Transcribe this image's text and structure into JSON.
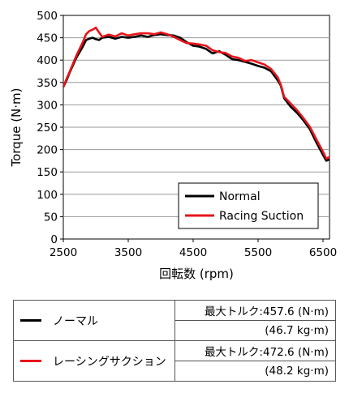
{
  "chart_data": {
    "type": "line",
    "xlabel": "回転数 (rpm)",
    "ylabel": "Torque (N·m)",
    "xlim": [
      2500,
      6600
    ],
    "ylim": [
      0,
      500
    ],
    "xticks": [
      "2500",
      "3500",
      "4500",
      "5500",
      "6500"
    ],
    "xtick_values": [
      2500,
      3500,
      4500,
      5500,
      6500
    ],
    "yticks": [
      "0",
      "50",
      "100",
      "150",
      "200",
      "250",
      "300",
      "350",
      "400",
      "450",
      "500"
    ],
    "ytick_values": [
      0,
      50,
      100,
      150,
      200,
      250,
      300,
      350,
      400,
      450,
      500
    ],
    "grid": "horizontal",
    "legend_position": "bottom-right",
    "series": [
      {
        "name": "Normal",
        "color": "#000000",
        "x": [
          2500,
          2550,
          2600,
          2700,
          2800,
          2850,
          2900,
          2950,
          3000,
          3050,
          3100,
          3200,
          3300,
          3400,
          3500,
          3600,
          3700,
          3800,
          3900,
          4000,
          4100,
          4200,
          4300,
          4400,
          4500,
          4600,
          4700,
          4800,
          4900,
          5000,
          5100,
          5200,
          5300,
          5400,
          5500,
          5600,
          5700,
          5800,
          5850,
          5900,
          6000,
          6100,
          6200,
          6300,
          6400,
          6500,
          6550,
          6600
        ],
        "y": [
          340,
          355,
          373,
          405,
          430,
          445,
          448,
          450,
          447,
          445,
          450,
          452,
          448,
          452,
          450,
          452,
          455,
          452,
          456,
          458,
          456,
          455,
          450,
          440,
          432,
          430,
          425,
          415,
          420,
          412,
          402,
          400,
          396,
          392,
          387,
          383,
          375,
          355,
          343,
          315,
          296,
          282,
          265,
          245,
          215,
          188,
          175,
          178
        ]
      },
      {
        "name": "Racing Suction",
        "color": "#e8141b",
        "x": [
          2500,
          2550,
          2600,
          2700,
          2800,
          2850,
          2900,
          2950,
          3000,
          3050,
          3100,
          3200,
          3300,
          3400,
          3500,
          3600,
          3700,
          3800,
          3900,
          4000,
          4100,
          4200,
          4300,
          4400,
          4500,
          4600,
          4700,
          4800,
          4900,
          5000,
          5100,
          5200,
          5300,
          5400,
          5500,
          5600,
          5700,
          5800,
          5850,
          5900,
          6000,
          6100,
          6200,
          6300,
          6400,
          6500,
          6550,
          6600
        ],
        "y": [
          340,
          358,
          375,
          410,
          440,
          458,
          465,
          468,
          472.6,
          462,
          452,
          457,
          453,
          460,
          455,
          458,
          460,
          460,
          458,
          462,
          458,
          452,
          445,
          438,
          437,
          435,
          432,
          422,
          418,
          416,
          408,
          405,
          398,
          400,
          395,
          390,
          380,
          362,
          345,
          318,
          303,
          288,
          270,
          250,
          222,
          195,
          180,
          183
        ]
      }
    ]
  },
  "table": {
    "rows": [
      {
        "name": "ノーマル",
        "color": "#000000",
        "max_torque": "最大トルク:457.6 (N·m)",
        "kgm": "(46.7 kg·m)"
      },
      {
        "name": "レーシングサクション",
        "color": "#e8141b",
        "max_torque": "最大トルク:472.6 (N·m)",
        "kgm": "(48.2 kg·m)"
      }
    ]
  }
}
